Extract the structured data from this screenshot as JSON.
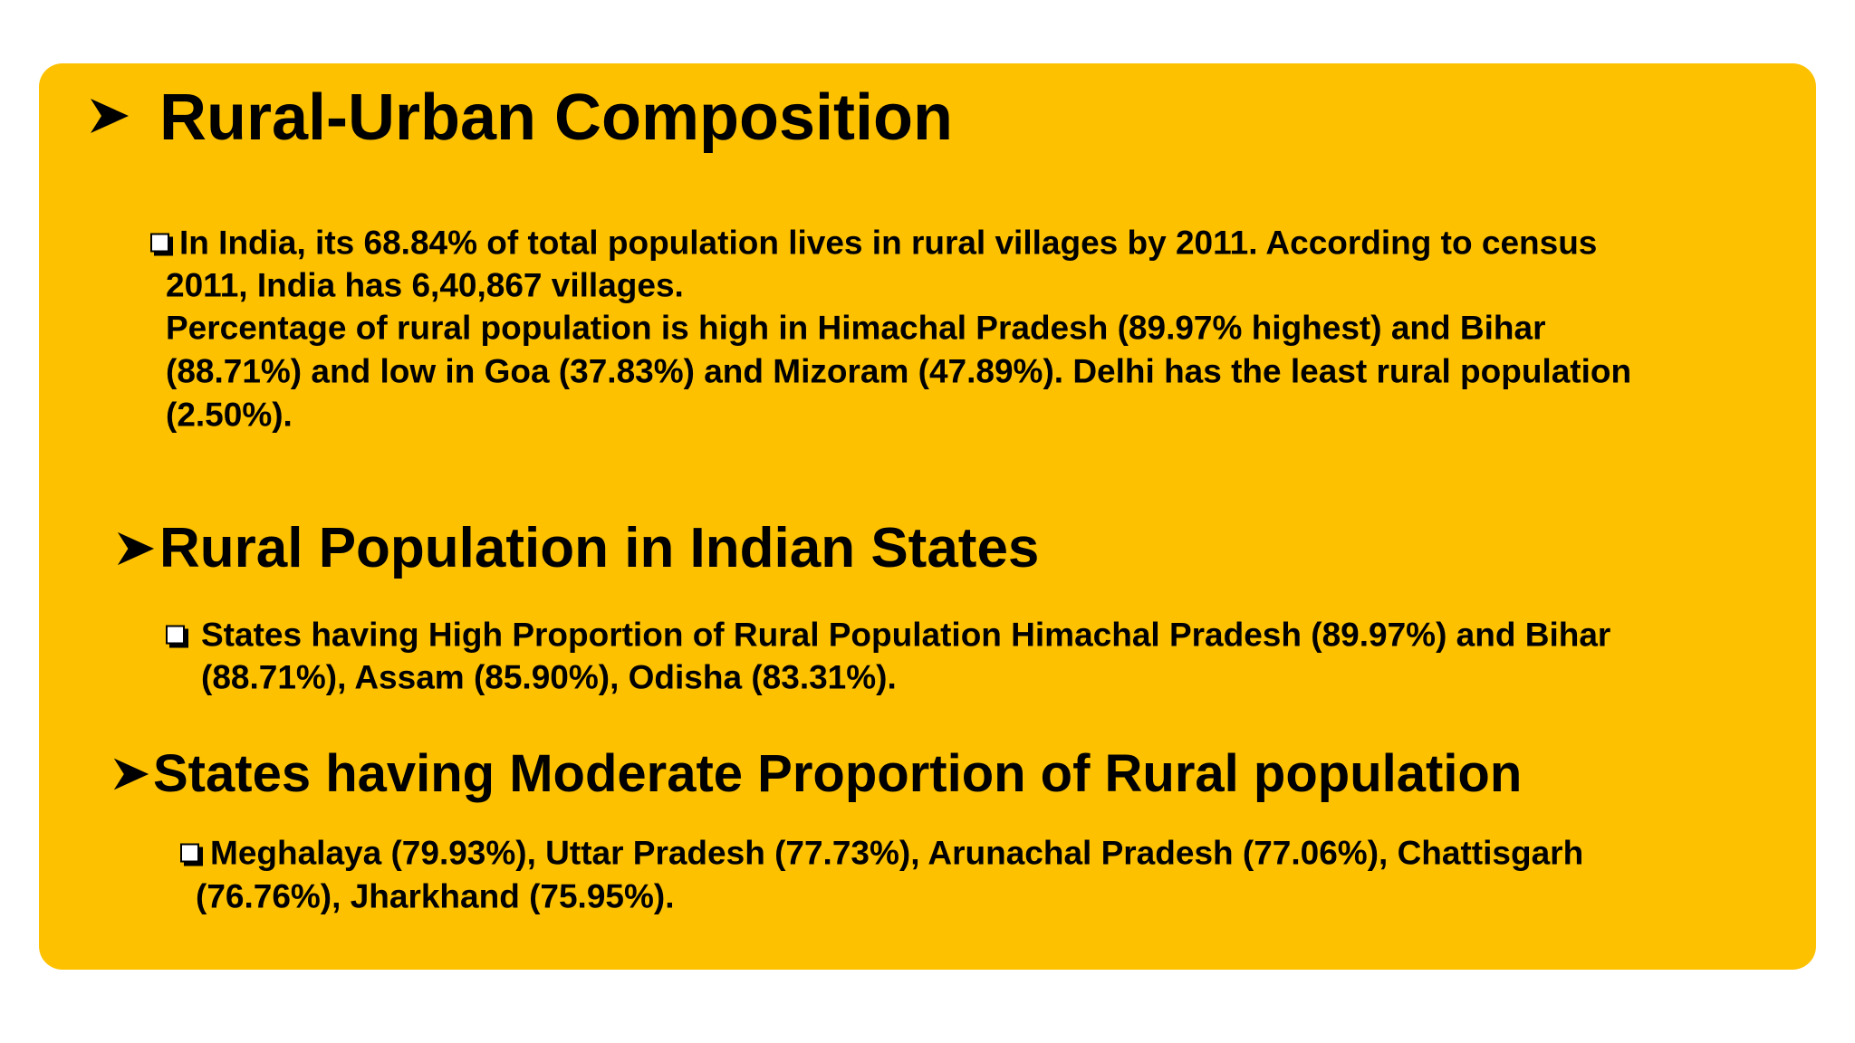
{
  "sections": [
    {
      "heading": "Rural-Urban Composition",
      "lines": [
        "In India, its 68.84% of total population lives in rural villages by 2011. According to census",
        "2011, India has 6,40,867 villages.",
        "Percentage of rural population is high in Himachal Pradesh (89.97% highest) and Bihar",
        "(88.71%) and low in Goa (37.83%) and Mizoram (47.89%). Delhi has the least rural population",
        "(2.50%)."
      ]
    },
    {
      "heading": "Rural Population in Indian States",
      "lines": [
        "States having High Proportion of Rural Population Himachal Pradesh (89.97%) and Bihar",
        "(88.71%), Assam (85.90%), Odisha (83.31%)."
      ]
    },
    {
      "heading": "States having Moderate Proportion of Rural population",
      "lines": [
        "Meghalaya (79.93%), Uttar Pradesh (77.73%), Arunachal Pradesh (77.06%), Chattisgarh",
        "(76.76%), Jharkhand (75.95%)."
      ]
    }
  ]
}
